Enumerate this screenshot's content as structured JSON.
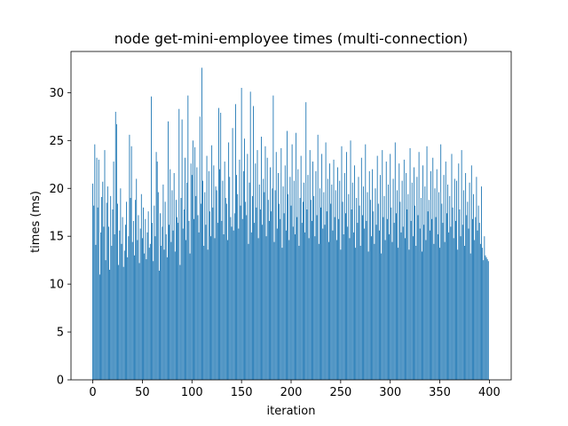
{
  "chart_data": {
    "type": "bar",
    "title": "node get-mini-employee times (multi-connection)",
    "xlabel": "iteration",
    "ylabel": "times (ms)",
    "xlim": [
      -22,
      422
    ],
    "ylim": [
      0,
      34.3
    ],
    "xticks": [
      0,
      50,
      100,
      150,
      200,
      250,
      300,
      350,
      400
    ],
    "yticks": [
      0,
      5,
      10,
      15,
      20,
      25,
      30
    ],
    "grid": false,
    "color": "#1f77b4",
    "n_bars": 400,
    "values": [
      20.5,
      18.2,
      24.6,
      14.1,
      23.2,
      18.0,
      23.0,
      11.0,
      15.4,
      19.1,
      20.7,
      16.0,
      24.0,
      12.5,
      18.5,
      20.2,
      16.0,
      11.5,
      19.2,
      14.0,
      17.8,
      22.8,
      15.2,
      28.0,
      26.7,
      18.4,
      12.0,
      15.6,
      20.0,
      14.2,
      17.0,
      11.8,
      13.5,
      16.2,
      18.6,
      12.8,
      15.0,
      25.6,
      19.0,
      24.4,
      14.4,
      16.6,
      13.0,
      18.8,
      21.0,
      14.6,
      17.2,
      12.2,
      15.8,
      19.4,
      14.8,
      18.0,
      13.2,
      16.8,
      12.6,
      15.4,
      17.6,
      13.8,
      14.2,
      29.6,
      16.4,
      12.4,
      18.2,
      15.0,
      23.8,
      22.8,
      19.6,
      11.4,
      17.4,
      14.0,
      16.0,
      20.4,
      13.6,
      18.6,
      15.2,
      12.8,
      27.0,
      16.2,
      22.0,
      14.4,
      19.8,
      15.6,
      21.6,
      13.4,
      18.8,
      17.0,
      16.4,
      28.3,
      12.0,
      19.0,
      27.2,
      15.8,
      17.8,
      23.2,
      14.6,
      20.6,
      29.7,
      16.6,
      13.2,
      22.6,
      21.4,
      25.0,
      16.8,
      24.3,
      19.2,
      22.2,
      17.2,
      15.4,
      27.5,
      18.4,
      32.6,
      20.8,
      14.0,
      19.6,
      16.2,
      23.4,
      13.6,
      21.8,
      17.6,
      15.0,
      24.5,
      18.0,
      22.4,
      14.8,
      20.2,
      19.8,
      16.4,
      28.4,
      22.0,
      27.9,
      16.6,
      20.8,
      15.2,
      22.8,
      19.0,
      18.4,
      14.6,
      24.8,
      21.2,
      17.0,
      16.0,
      26.3,
      15.6,
      17.4,
      28.8,
      21.4,
      19.4,
      15.8,
      23.0,
      18.2,
      30.5,
      16.8,
      21.8,
      25.2,
      18.6,
      17.2,
      23.6,
      14.2,
      20.6,
      30.1,
      15.4,
      19.2,
      28.6,
      16.4,
      22.6,
      18.0,
      24.0,
      14.8,
      20.4,
      17.8,
      25.4,
      16.2,
      21.0,
      19.6,
      24.4,
      15.0,
      23.2,
      18.8,
      16.6,
      22.2,
      17.6,
      20.0,
      29.7,
      14.4,
      19.8,
      23.8,
      15.8,
      21.6,
      18.4,
      16.8,
      24.2,
      13.8,
      20.2,
      17.4,
      22.4,
      15.6,
      26.0,
      19.4,
      14.6,
      21.2,
      18.2,
      24.6,
      16.0,
      20.8,
      15.2,
      25.8,
      17.0,
      22.0,
      14.0,
      19.0,
      23.4,
      16.4,
      18.6,
      20.6,
      15.4,
      29.0,
      17.8,
      21.4,
      14.8,
      24.0,
      18.8,
      16.6,
      22.8,
      19.2,
      15.0,
      21.8,
      17.2,
      25.6,
      14.2,
      20.0,
      18.0,
      23.6,
      15.8,
      19.6,
      16.2,
      24.8,
      17.6,
      21.0,
      14.4,
      22.6,
      18.4,
      20.4,
      15.6,
      23.0,
      17.0,
      19.8,
      14.6,
      22.2,
      16.8,
      20.8,
      13.6,
      24.4,
      18.6,
      15.2,
      21.6,
      17.4,
      23.8,
      16.0,
      19.4,
      14.8,
      25.0,
      17.8,
      20.6,
      15.4,
      22.4,
      13.8,
      19.0,
      16.4,
      21.2,
      18.2,
      14.0,
      23.2,
      17.2,
      20.2,
      15.8,
      24.6,
      16.6,
      19.6,
      13.4,
      21.8,
      18.8,
      15.0,
      22.0,
      17.6,
      14.2,
      20.0,
      16.2,
      23.4,
      18.4,
      15.6,
      21.4,
      13.2,
      24.0,
      17.0,
      19.2,
      14.6,
      22.8,
      16.8,
      20.4,
      15.2,
      23.6,
      18.0,
      14.4,
      21.0,
      16.4,
      24.8,
      17.4,
      19.8,
      13.8,
      22.6,
      18.6,
      15.4,
      20.8,
      16.0,
      23.0,
      14.8,
      21.6,
      17.8,
      19.4,
      13.6,
      24.2,
      16.6,
      20.6,
      15.0,
      22.2,
      18.2,
      14.0,
      21.2,
      17.2,
      23.8,
      15.8,
      19.0,
      13.4,
      22.4,
      16.2,
      20.2,
      14.6,
      24.4,
      17.6,
      18.8,
      15.6,
      21.8,
      16.8,
      23.2,
      14.2,
      20.0,
      17.0,
      22.0,
      15.2,
      19.6,
      13.8,
      24.6,
      18.4,
      16.4,
      21.4,
      14.4,
      22.8,
      17.4,
      20.4,
      15.4,
      19.2,
      16.0,
      23.6,
      18.0,
      14.8,
      21.0,
      16.6,
      20.8,
      13.6,
      22.6,
      17.8,
      15.0,
      24.0,
      16.2,
      19.8,
      14.0,
      21.6,
      17.2,
      18.6,
      15.8,
      20.6,
      13.2,
      22.4,
      16.8,
      19.4,
      14.6,
      17.0,
      21.2,
      15.6,
      18.2,
      16.4,
      14.2,
      20.2,
      13.8,
      12.5,
      15.0,
      13.0,
      12.8,
      12.6,
      12.4
    ]
  }
}
